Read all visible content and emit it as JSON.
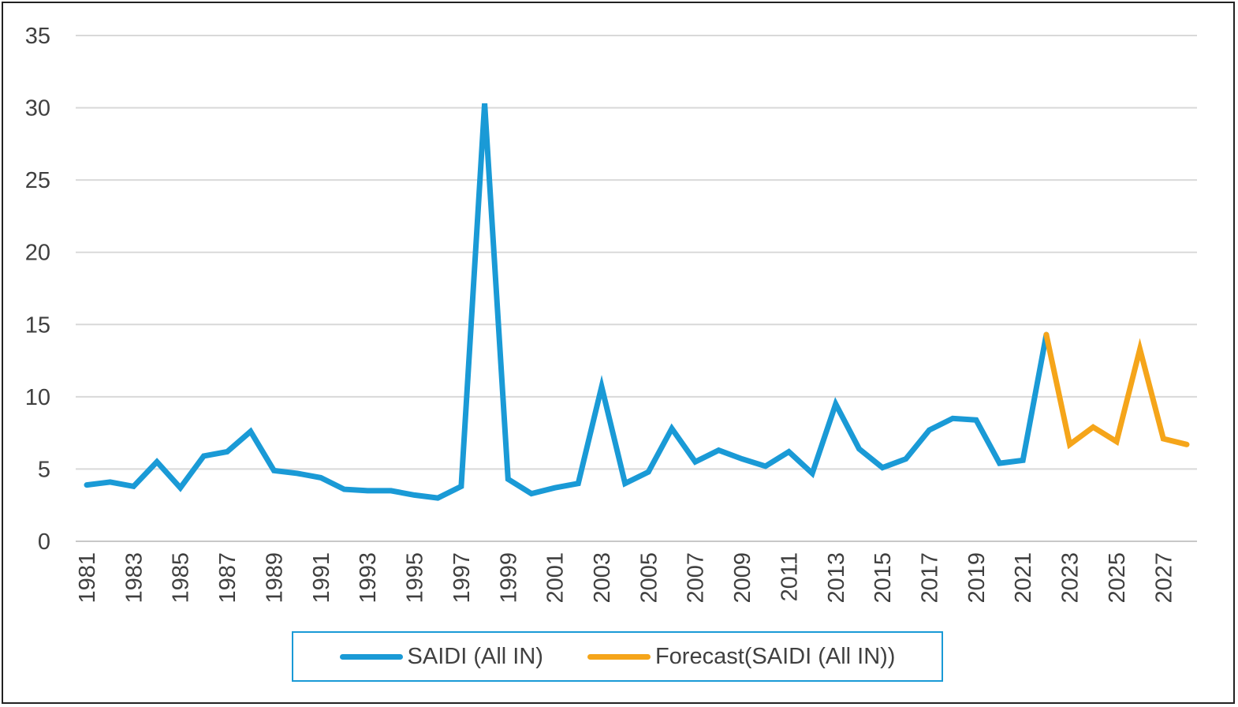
{
  "chart_data": {
    "type": "line",
    "title": "",
    "xlabel": "",
    "ylabel": "",
    "ylim": [
      0,
      35
    ],
    "yticks": [
      0,
      5,
      10,
      15,
      20,
      25,
      30,
      35
    ],
    "grid": true,
    "legend_position": "bottom",
    "x_start": 1981,
    "x_end": 2028,
    "xtick_labels": [
      "1981",
      "1983",
      "1985",
      "1987",
      "1989",
      "1991",
      "1993",
      "1995",
      "1997",
      "1999",
      "2001",
      "2003",
      "2005",
      "2007",
      "2009",
      "2011",
      "2013",
      "2015",
      "2017",
      "2019",
      "2021",
      "2023",
      "2025",
      "2027"
    ],
    "series": [
      {
        "name": "SAIDI (All IN)",
        "color": "#1a9ad6",
        "x": [
          1981,
          1982,
          1983,
          1984,
          1985,
          1986,
          1987,
          1988,
          1989,
          1990,
          1991,
          1992,
          1993,
          1994,
          1995,
          1996,
          1997,
          1998,
          1999,
          2000,
          2001,
          2002,
          2003,
          2004,
          2005,
          2006,
          2007,
          2008,
          2009,
          2010,
          2011,
          2012,
          2013,
          2014,
          2015,
          2016,
          2017,
          2018,
          2019,
          2020,
          2021,
          2022
        ],
        "values": [
          3.9,
          4.1,
          3.8,
          5.5,
          3.7,
          5.9,
          6.2,
          7.6,
          4.9,
          4.7,
          4.4,
          3.6,
          3.5,
          3.5,
          3.2,
          3.0,
          3.8,
          30.3,
          4.3,
          3.3,
          3.7,
          4.0,
          10.7,
          4.0,
          4.8,
          7.8,
          5.5,
          6.3,
          5.7,
          5.2,
          6.2,
          4.7,
          9.5,
          6.4,
          5.1,
          5.7,
          7.7,
          8.5,
          8.4,
          5.4,
          5.6,
          14.3
        ]
      },
      {
        "name": "Forecast(SAIDI (All IN))",
        "color": "#f5a51a",
        "x": [
          2022,
          2023,
          2024,
          2025,
          2026,
          2027,
          2028
        ],
        "values": [
          14.3,
          6.7,
          7.9,
          6.9,
          13.3,
          7.1,
          6.7
        ]
      }
    ]
  }
}
